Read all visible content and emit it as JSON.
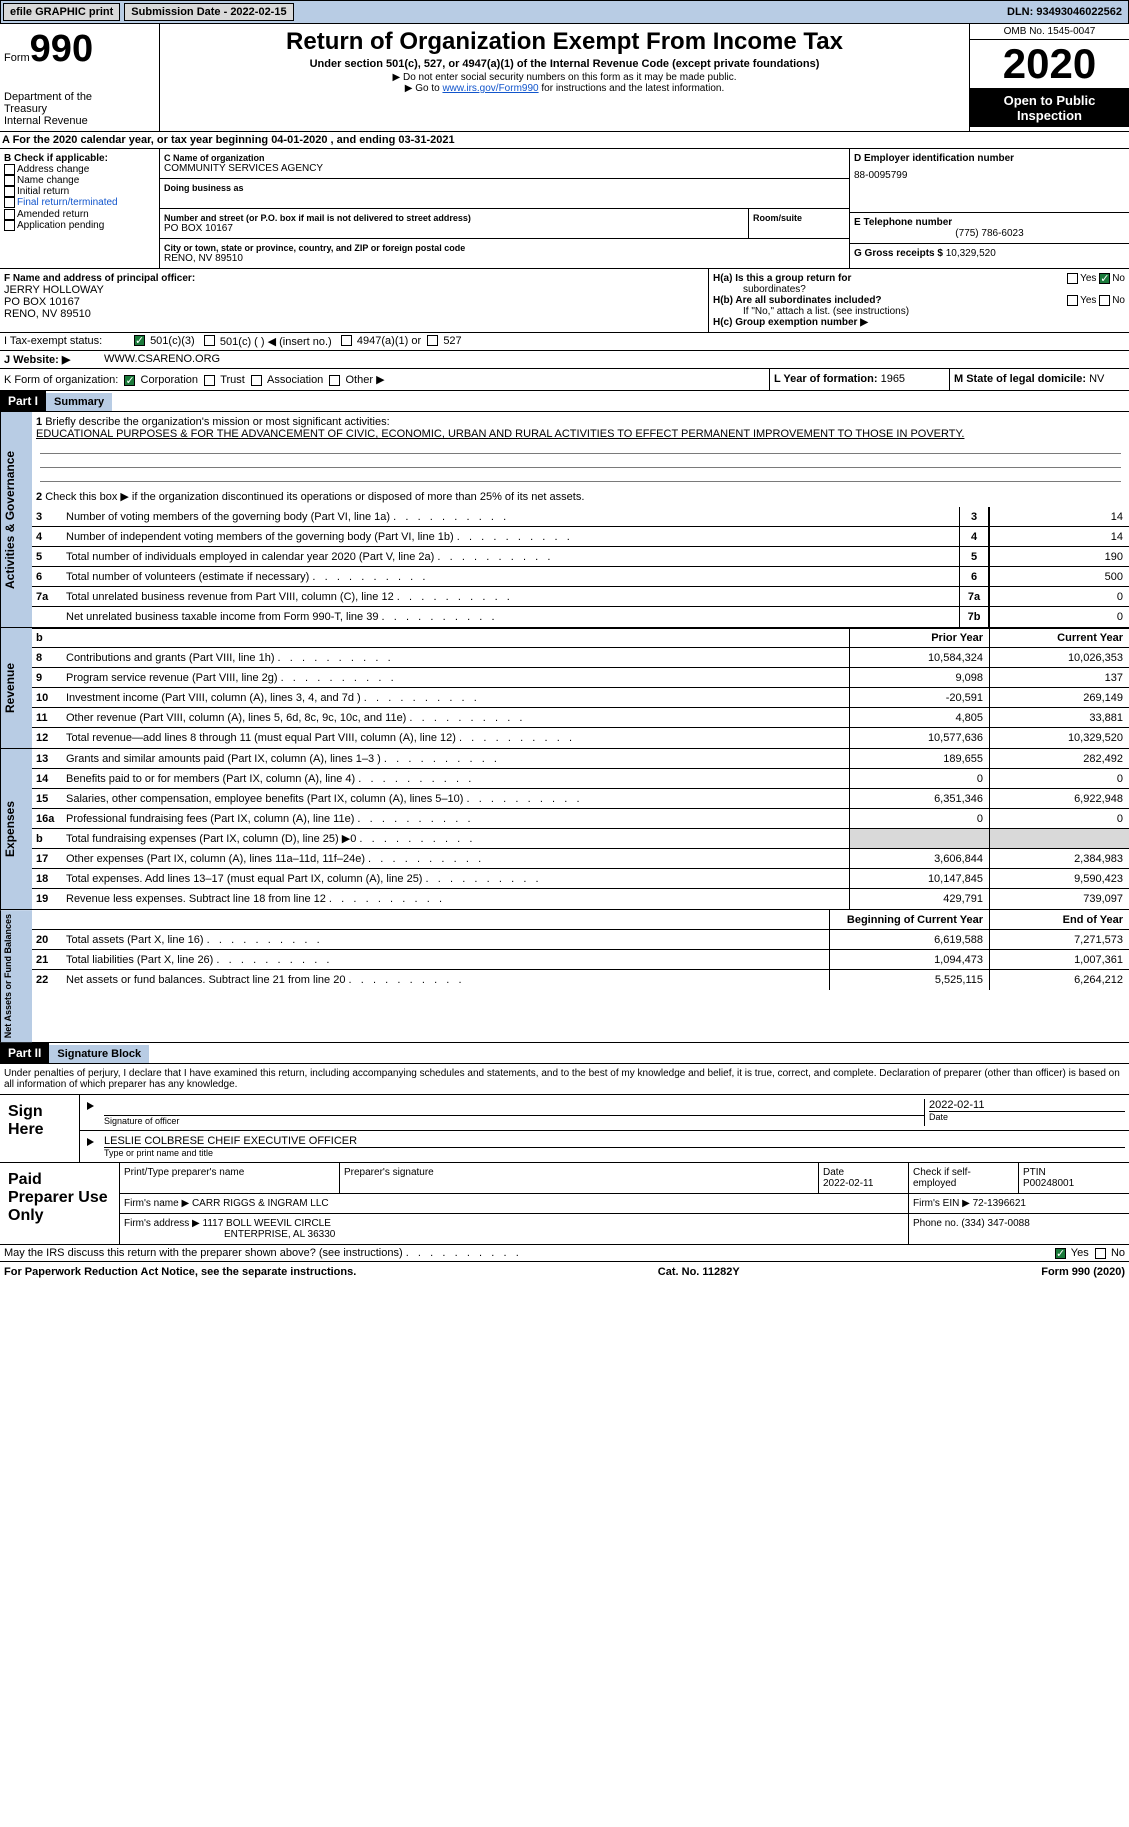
{
  "topbar": {
    "efile_btn": "efile GRAPHIC print",
    "subdate_label": "Submission Date - 2022-02-15",
    "dln": "DLN: 93493046022562"
  },
  "header": {
    "form_word": "Form",
    "form_num": "990",
    "dept1": "Department of the",
    "dept2": "Treasury",
    "dept3": "Internal Revenue",
    "title": "Return of Organization Exempt From Income Tax",
    "subtitle": "Under section 501(c), 527, or 4947(a)(1) of the Internal Revenue Code (except private foundations)",
    "note1": "▶ Do not enter social security numbers on this form as it may be made public.",
    "note2_pre": "▶ Go to ",
    "note2_link": "www.irs.gov/Form990",
    "note2_post": " for instructions and the latest information.",
    "omb": "OMB No. 1545-0047",
    "year": "2020",
    "inspect1": "Open to Public",
    "inspect2": "Inspection"
  },
  "taxline": "A   For the 2020 calendar year, or tax year beginning 04-01-2020    , and ending 03-31-2021",
  "boxB": {
    "title": "B Check if applicable:",
    "items": [
      "Address change",
      "Name change",
      "Initial return",
      "Final return/terminated",
      "Amended return",
      "Application pending"
    ]
  },
  "boxC": {
    "name_label": "C Name of organization",
    "name": "COMMUNITY SERVICES AGENCY",
    "dba_label": "Doing business as",
    "addr_label": "Number and street (or P.O. box if mail is not delivered to street address)",
    "room_label": "Room/suite",
    "addr": "PO BOX 10167",
    "city_label": "City or town, state or province, country, and ZIP or foreign postal code",
    "city": "RENO, NV  89510"
  },
  "boxD": {
    "label": "D Employer identification number",
    "val": "88-0095799"
  },
  "boxE": {
    "label": "E Telephone number",
    "val": "(775) 786-6023"
  },
  "boxG": {
    "label": "G Gross receipts $",
    "val": "10,329,520"
  },
  "boxF": {
    "label": "F  Name and address of principal officer:",
    "name": "JERRY HOLLOWAY",
    "addr1": "PO BOX 10167",
    "addr2": "RENO, NV  89510"
  },
  "boxH": {
    "ha": "H(a)  Is this a group return for",
    "ha2": "subordinates?",
    "hb": "H(b)  Are all subordinates included?",
    "hnote": "If \"No,\" attach a list. (see instructions)",
    "hc": "H(c)  Group exemption number ▶",
    "yes": "Yes",
    "no": "No"
  },
  "boxI": {
    "label": "I    Tax-exempt status:",
    "opts": [
      "501(c)(3)",
      "501(c) (  ) ◀ (insert no.)",
      "4947(a)(1) or",
      "527"
    ]
  },
  "boxJ": {
    "label": "J    Website: ▶",
    "val": "WWW.CSARENO.ORG"
  },
  "boxK": {
    "label": "K Form of organization:",
    "opts": [
      "Corporation",
      "Trust",
      "Association",
      "Other ▶"
    ]
  },
  "boxL": {
    "label": "L Year of formation:",
    "val": "1965"
  },
  "boxM": {
    "label": "M State of legal domicile:",
    "val": "NV"
  },
  "part1": {
    "hdr": "Part I",
    "title": "Summary",
    "side1": "Activities & Governance",
    "side2": "Revenue",
    "side3": "Expenses",
    "side4": "Net Assets or Fund Balances",
    "l1": "Briefly describe the organization's mission or most significant activities:",
    "l1text": "EDUCATIONAL PURPOSES & FOR THE ADVANCEMENT OF CIVIC, ECONOMIC, URBAN AND RURAL ACTIVITIES TO EFFECT PERMANENT IMPROVEMENT TO THOSE IN POVERTY.",
    "l2": "Check this box ▶         if the organization discontinued its operations or disposed of more than 25% of its net assets.",
    "lines_gov": [
      {
        "n": "3",
        "d": "Number of voting members of the governing body (Part VI, line 1a)",
        "box": "3",
        "v": "14"
      },
      {
        "n": "4",
        "d": "Number of independent voting members of the governing body (Part VI, line 1b)",
        "box": "4",
        "v": "14"
      },
      {
        "n": "5",
        "d": "Total number of individuals employed in calendar year 2020 (Part V, line 2a)",
        "box": "5",
        "v": "190"
      },
      {
        "n": "6",
        "d": "Total number of volunteers (estimate if necessary)",
        "box": "6",
        "v": "500"
      },
      {
        "n": "7a",
        "d": "Total unrelated business revenue from Part VIII, column (C), line 12",
        "box": "7a",
        "v": "0"
      },
      {
        "n": "",
        "d": "Net unrelated business taxable income from Form 990-T, line 39",
        "box": "7b",
        "v": "0"
      }
    ],
    "col_prior": "Prior Year",
    "col_current": "Current Year",
    "lines_rev": [
      {
        "n": "8",
        "d": "Contributions and grants (Part VIII, line 1h)",
        "p": "10,584,324",
        "c": "10,026,353"
      },
      {
        "n": "9",
        "d": "Program service revenue (Part VIII, line 2g)",
        "p": "9,098",
        "c": "137"
      },
      {
        "n": "10",
        "d": "Investment income (Part VIII, column (A), lines 3, 4, and 7d )",
        "p": "-20,591",
        "c": "269,149"
      },
      {
        "n": "11",
        "d": "Other revenue (Part VIII, column (A), lines 5, 6d, 8c, 9c, 10c, and 11e)",
        "p": "4,805",
        "c": "33,881"
      },
      {
        "n": "12",
        "d": "Total revenue—add lines 8 through 11 (must equal Part VIII, column (A), line 12)",
        "p": "10,577,636",
        "c": "10,329,520"
      }
    ],
    "lines_exp": [
      {
        "n": "13",
        "d": "Grants and similar amounts paid (Part IX, column (A), lines 1–3 )",
        "p": "189,655",
        "c": "282,492"
      },
      {
        "n": "14",
        "d": "Benefits paid to or for members (Part IX, column (A), line 4)",
        "p": "0",
        "c": "0"
      },
      {
        "n": "15",
        "d": "Salaries, other compensation, employee benefits (Part IX, column (A), lines 5–10)",
        "p": "6,351,346",
        "c": "6,922,948"
      },
      {
        "n": "16a",
        "d": "Professional fundraising fees (Part IX, column (A), line 11e)",
        "p": "0",
        "c": "0"
      },
      {
        "n": "b",
        "d": "Total fundraising expenses (Part IX, column (D), line 25) ▶0",
        "p": "",
        "c": "",
        "gray": true
      },
      {
        "n": "17",
        "d": "Other expenses (Part IX, column (A), lines 11a–11d, 11f–24e)",
        "p": "3,606,844",
        "c": "2,384,983"
      },
      {
        "n": "18",
        "d": "Total expenses. Add lines 13–17 (must equal Part IX, column (A), line 25)",
        "p": "10,147,845",
        "c": "9,590,423"
      },
      {
        "n": "19",
        "d": "Revenue less expenses. Subtract line 18 from line 12",
        "p": "429,791",
        "c": "739,097"
      }
    ],
    "col_begin": "Beginning of Current Year",
    "col_end": "End of Year",
    "lines_net": [
      {
        "n": "20",
        "d": "Total assets (Part X, line 16)",
        "p": "6,619,588",
        "c": "7,271,573"
      },
      {
        "n": "21",
        "d": "Total liabilities (Part X, line 26)",
        "p": "1,094,473",
        "c": "1,007,361"
      },
      {
        "n": "22",
        "d": "Net assets or fund balances. Subtract line 21 from line 20",
        "p": "5,525,115",
        "c": "6,264,212"
      }
    ]
  },
  "part2": {
    "hdr": "Part II",
    "title": "Signature Block",
    "declare": "Under penalties of perjury, I declare that I have examined this return, including accompanying schedules and statements, and to the best of my knowledge and belief, it is true, correct, and complete. Declaration of preparer (other than officer) is based on all information of which preparer has any knowledge.",
    "sign": "Sign Here",
    "sigdate": "2022-02-11",
    "siglabel": "Signature of officer",
    "datelabel": "Date",
    "officer": "LESLIE COLBRESE  CHEIF EXECUTIVE OFFICER",
    "typelabel": "Type or print name and title",
    "paid": "Paid Preparer Use Only",
    "prep_name_label": "Print/Type preparer's name",
    "prep_sig_label": "Preparer's signature",
    "prep_date_label": "Date",
    "prep_date": "2022-02-11",
    "prep_self": "Check         if self-employed",
    "ptin_label": "PTIN",
    "ptin": "P00248001",
    "firm_label": "Firm's name    ▶",
    "firm": "CARR RIGGS & INGRAM LLC",
    "ein_label": "Firm's EIN ▶",
    "ein": "72-1396621",
    "addr_label": "Firm's address ▶",
    "addr1": "1117 BOLL WEEVIL CIRCLE",
    "addr2": "ENTERPRISE, AL  36330",
    "phone_label": "Phone no.",
    "phone": "(334) 347-0088",
    "discuss": "May the IRS discuss this return with the preparer shown above? (see instructions)"
  },
  "footer": {
    "l": "For Paperwork Reduction Act Notice, see the separate instructions.",
    "m": "Cat. No. 11282Y",
    "r": "Form 990 (2020)"
  }
}
